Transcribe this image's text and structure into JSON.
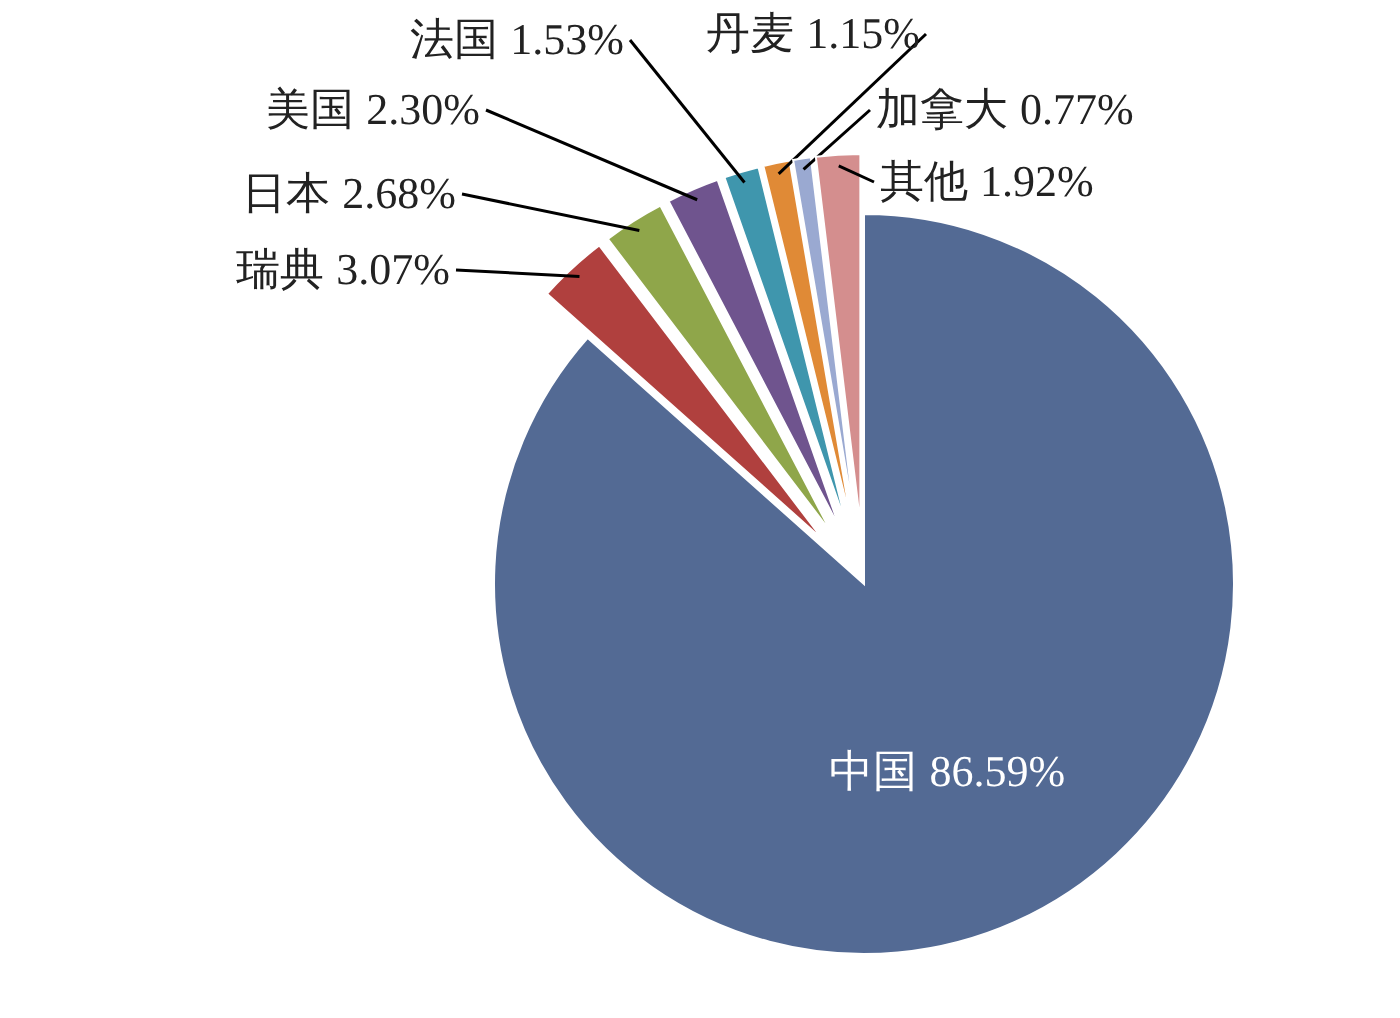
{
  "chart_data": {
    "type": "pie",
    "categories": [
      "中国",
      "瑞典",
      "日本",
      "美国",
      "法国",
      "丹麦",
      "加拿大",
      "其他"
    ],
    "values": [
      86.59,
      3.07,
      2.68,
      2.3,
      1.53,
      1.15,
      0.77,
      1.92
    ],
    "colors": [
      "#536a94",
      "#b0403e",
      "#8fa64a",
      "#6f548e",
      "#3f96ad",
      "#e08a36",
      "#9aa9d1",
      "#d48e8e"
    ],
    "value_labels": [
      "86.59%",
      "3.07%",
      "2.68%",
      "2.30%",
      "1.53%",
      "1.15%",
      "0.77%",
      "1.92%"
    ]
  }
}
